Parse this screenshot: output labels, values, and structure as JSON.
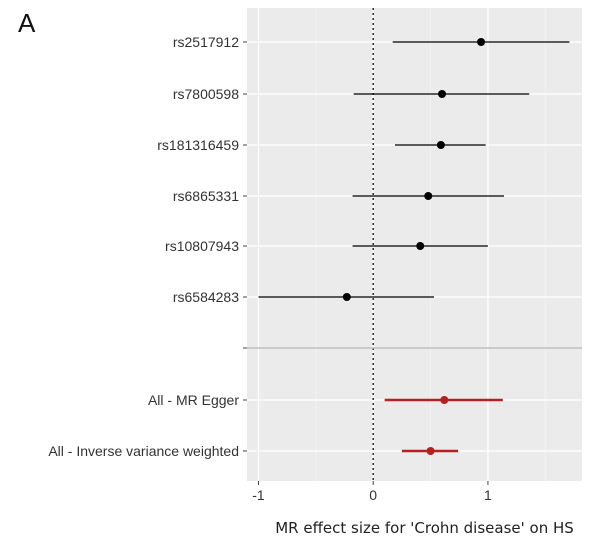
{
  "panel_label": "A",
  "chart_data": {
    "type": "scatter",
    "subtype": "forest-plot",
    "xlabel": "MR effect size for 'Crohn disease' on HS",
    "ylabel": "",
    "xlim": [
      -1.1,
      1.82
    ],
    "xticks": [
      -1,
      0,
      1
    ],
    "xtick_labels": [
      "-1",
      "0",
      "1"
    ],
    "reference_line": 0,
    "grid": true,
    "background": "#ebebeb",
    "colors": {
      "snp": "#000000",
      "summary": "#b22222",
      "separator": "#bdbdbd"
    },
    "snps": [
      {
        "label": "rs2517912",
        "estimate": 0.94,
        "lower": 0.17,
        "upper": 1.71
      },
      {
        "label": "rs7800598",
        "estimate": 0.6,
        "lower": -0.17,
        "upper": 1.36
      },
      {
        "label": "rs181316459",
        "estimate": 0.59,
        "lower": 0.19,
        "upper": 0.98
      },
      {
        "label": "rs6865331",
        "estimate": 0.48,
        "lower": -0.18,
        "upper": 1.14
      },
      {
        "label": "rs10807943",
        "estimate": 0.41,
        "lower": -0.18,
        "upper": 1.0
      },
      {
        "label": "rs6584283",
        "estimate": -0.23,
        "lower": -1.0,
        "upper": 0.53
      }
    ],
    "summary": [
      {
        "label": "All - MR Egger",
        "estimate": 0.62,
        "lower": 0.1,
        "upper": 1.13
      },
      {
        "label": "All - Inverse variance weighted",
        "estimate": 0.5,
        "lower": 0.25,
        "upper": 0.74
      }
    ]
  }
}
